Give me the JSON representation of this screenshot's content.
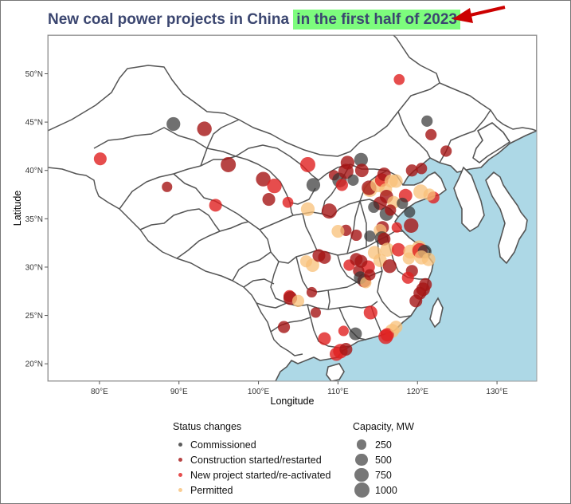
{
  "title": {
    "prefix": "New coal power projects in China",
    "highlight": "in the first half of 2023"
  },
  "colors": {
    "sea": "#add8e6",
    "land": "#ffffff",
    "border": "#555555",
    "title": "#3b4670",
    "highlight": "#7dfc7d",
    "arrow": "#cc0000",
    "commissioned": "#333333",
    "construction": "#a51515",
    "new_project": "#e02020",
    "permitted": "#f8c078"
  },
  "axes": {
    "xlabel": "Longitude",
    "ylabel": "Latitude",
    "xticks": [
      "80°E",
      "90°E",
      "100°E",
      "110°E",
      "120°E",
      "130°E"
    ],
    "xtick_values": [
      80,
      90,
      100,
      110,
      120,
      130
    ],
    "yticks": [
      "20°N",
      "25°N",
      "30°N",
      "35°N",
      "40°N",
      "45°N",
      "50°N"
    ],
    "ytick_values": [
      20,
      25,
      30,
      35,
      40,
      45,
      50
    ],
    "xlim": [
      73.5,
      135
    ],
    "ylim": [
      18.2,
      54
    ]
  },
  "legend": {
    "status_title": "Status changes",
    "status_items": [
      {
        "label": "Commissioned",
        "key": "commissioned"
      },
      {
        "label": "Construction started/restarted",
        "key": "construction"
      },
      {
        "label": "New project started/re-activated",
        "key": "new_project"
      },
      {
        "label": "Permitted",
        "key": "permitted"
      }
    ],
    "capacity_title": "Capacity, MW",
    "capacity_items": [
      {
        "label": "250",
        "value": 250
      },
      {
        "label": "500",
        "value": 500
      },
      {
        "label": "750",
        "value": 750
      },
      {
        "label": "1000",
        "value": 1000
      }
    ]
  },
  "projects": [
    {
      "lon": 89.3,
      "lat": 44.8,
      "status": "commissioned",
      "mw": 750
    },
    {
      "lon": 93.2,
      "lat": 44.3,
      "status": "construction",
      "mw": 900
    },
    {
      "lon": 80.1,
      "lat": 41.2,
      "status": "new_project",
      "mw": 600
    },
    {
      "lon": 88.5,
      "lat": 38.3,
      "status": "construction",
      "mw": 300
    },
    {
      "lon": 96.2,
      "lat": 40.6,
      "status": "construction",
      "mw": 1000
    },
    {
      "lon": 94.6,
      "lat": 36.4,
      "status": "new_project",
      "mw": 600
    },
    {
      "lon": 100.6,
      "lat": 39.1,
      "status": "construction",
      "mw": 900
    },
    {
      "lon": 102.0,
      "lat": 38.4,
      "status": "new_project",
      "mw": 900
    },
    {
      "lon": 101.3,
      "lat": 37.0,
      "status": "construction",
      "mw": 600
    },
    {
      "lon": 103.7,
      "lat": 36.7,
      "status": "new_project",
      "mw": 350
    },
    {
      "lon": 106.2,
      "lat": 40.6,
      "status": "new_project",
      "mw": 1000
    },
    {
      "lon": 106.9,
      "lat": 38.5,
      "status": "commissioned",
      "mw": 750
    },
    {
      "lon": 106.2,
      "lat": 36.0,
      "status": "permitted",
      "mw": 750
    },
    {
      "lon": 108.9,
      "lat": 35.8,
      "status": "construction",
      "mw": 1000
    },
    {
      "lon": 109.5,
      "lat": 39.5,
      "status": "construction",
      "mw": 300
    },
    {
      "lon": 110.2,
      "lat": 39.0,
      "status": "commissioned",
      "mw": 900
    },
    {
      "lon": 111.0,
      "lat": 39.9,
      "status": "construction",
      "mw": 1000
    },
    {
      "lon": 111.2,
      "lat": 40.8,
      "status": "construction",
      "mw": 750
    },
    {
      "lon": 112.9,
      "lat": 41.1,
      "status": "commissioned",
      "mw": 750
    },
    {
      "lon": 113.0,
      "lat": 40.0,
      "status": "construction",
      "mw": 700
    },
    {
      "lon": 111.9,
      "lat": 39.0,
      "status": "commissioned",
      "mw": 400
    },
    {
      "lon": 110.5,
      "lat": 38.5,
      "status": "new_project",
      "mw": 500
    },
    {
      "lon": 114.0,
      "lat": 38.0,
      "status": "permitted",
      "mw": 900
    },
    {
      "lon": 113.9,
      "lat": 38.2,
      "status": "construction",
      "mw": 900
    },
    {
      "lon": 115.0,
      "lat": 38.5,
      "status": "permitted",
      "mw": 900
    },
    {
      "lon": 115.5,
      "lat": 39.0,
      "status": "new_project",
      "mw": 700
    },
    {
      "lon": 115.8,
      "lat": 39.6,
      "status": "construction",
      "mw": 700
    },
    {
      "lon": 116.7,
      "lat": 38.9,
      "status": "permitted",
      "mw": 700
    },
    {
      "lon": 117.3,
      "lat": 38.9,
      "status": "permitted",
      "mw": 700
    },
    {
      "lon": 116.0,
      "lat": 38.0,
      "status": "permitted",
      "mw": 600
    },
    {
      "lon": 116.1,
      "lat": 37.3,
      "status": "construction",
      "mw": 700
    },
    {
      "lon": 118.5,
      "lat": 37.4,
      "status": "new_project",
      "mw": 700
    },
    {
      "lon": 119.3,
      "lat": 40.0,
      "status": "construction",
      "mw": 500
    },
    {
      "lon": 120.5,
      "lat": 40.2,
      "status": "construction",
      "mw": 400
    },
    {
      "lon": 120.4,
      "lat": 37.8,
      "status": "permitted",
      "mw": 900
    },
    {
      "lon": 122.0,
      "lat": 37.2,
      "status": "new_project",
      "mw": 500
    },
    {
      "lon": 121.5,
      "lat": 37.5,
      "status": "permitted",
      "mw": 500
    },
    {
      "lon": 121.2,
      "lat": 45.1,
      "status": "commissioned",
      "mw": 400
    },
    {
      "lon": 121.7,
      "lat": 43.7,
      "status": "construction",
      "mw": 400
    },
    {
      "lon": 123.6,
      "lat": 42.0,
      "status": "construction",
      "mw": 400
    },
    {
      "lon": 117.7,
      "lat": 49.4,
      "status": "new_project",
      "mw": 350
    },
    {
      "lon": 115.3,
      "lat": 36.6,
      "status": "construction",
      "mw": 700
    },
    {
      "lon": 114.5,
      "lat": 36.2,
      "status": "commissioned",
      "mw": 400
    },
    {
      "lon": 117.0,
      "lat": 36.7,
      "status": "permitted",
      "mw": 600
    },
    {
      "lon": 116.1,
      "lat": 35.5,
      "status": "commissioned",
      "mw": 750
    },
    {
      "lon": 116.6,
      "lat": 35.9,
      "status": "construction",
      "mw": 400
    },
    {
      "lon": 118.1,
      "lat": 36.6,
      "status": "commissioned",
      "mw": 400
    },
    {
      "lon": 119.0,
      "lat": 35.7,
      "status": "commissioned",
      "mw": 400
    },
    {
      "lon": 119.2,
      "lat": 34.3,
      "status": "construction",
      "mw": 900
    },
    {
      "lon": 115.6,
      "lat": 34.1,
      "status": "construction",
      "mw": 600
    },
    {
      "lon": 117.4,
      "lat": 34.1,
      "status": "new_project",
      "mw": 300
    },
    {
      "lon": 115.3,
      "lat": 33.8,
      "status": "permitted",
      "mw": 600
    },
    {
      "lon": 114.0,
      "lat": 33.2,
      "status": "commissioned",
      "mw": 400
    },
    {
      "lon": 115.5,
      "lat": 33.0,
      "status": "commissioned",
      "mw": 750
    },
    {
      "lon": 115.8,
      "lat": 32.9,
      "status": "construction",
      "mw": 600
    },
    {
      "lon": 116.2,
      "lat": 31.8,
      "status": "permitted",
      "mw": 800
    },
    {
      "lon": 114.6,
      "lat": 31.5,
      "status": "permitted",
      "mw": 700
    },
    {
      "lon": 115.3,
      "lat": 30.7,
      "status": "permitted",
      "mw": 700
    },
    {
      "lon": 116.5,
      "lat": 30.1,
      "status": "construction",
      "mw": 750
    },
    {
      "lon": 117.6,
      "lat": 31.8,
      "status": "new_project",
      "mw": 700
    },
    {
      "lon": 119.1,
      "lat": 31.6,
      "status": "permitted",
      "mw": 800
    },
    {
      "lon": 120.2,
      "lat": 32.0,
      "status": "permitted",
      "mw": 900
    },
    {
      "lon": 120.3,
      "lat": 31.7,
      "status": "new_project",
      "mw": 1000
    },
    {
      "lon": 120.9,
      "lat": 31.6,
      "status": "commissioned",
      "mw": 750
    },
    {
      "lon": 120.5,
      "lat": 31.0,
      "status": "permitted",
      "mw": 800
    },
    {
      "lon": 121.4,
      "lat": 30.8,
      "status": "permitted",
      "mw": 700
    },
    {
      "lon": 118.9,
      "lat": 30.9,
      "status": "permitted",
      "mw": 500
    },
    {
      "lon": 119.3,
      "lat": 29.6,
      "status": "construction",
      "mw": 500
    },
    {
      "lon": 113.8,
      "lat": 30.0,
      "status": "new_project",
      "mw": 700
    },
    {
      "lon": 112.6,
      "lat": 29.6,
      "status": "construction",
      "mw": 400
    },
    {
      "lon": 113.3,
      "lat": 28.6,
      "status": "construction",
      "mw": 750
    },
    {
      "lon": 112.8,
      "lat": 28.9,
      "status": "commissioned",
      "mw": 600
    },
    {
      "lon": 113.5,
      "lat": 28.4,
      "status": "permitted",
      "mw": 400
    },
    {
      "lon": 114.0,
      "lat": 29.2,
      "status": "construction",
      "mw": 400
    },
    {
      "lon": 111.4,
      "lat": 30.2,
      "status": "new_project",
      "mw": 400
    },
    {
      "lon": 112.3,
      "lat": 30.8,
      "status": "construction",
      "mw": 600
    },
    {
      "lon": 112.9,
      "lat": 30.6,
      "status": "construction",
      "mw": 600
    },
    {
      "lon": 111.0,
      "lat": 33.8,
      "status": "construction",
      "mw": 400
    },
    {
      "lon": 110.0,
      "lat": 33.7,
      "status": "permitted",
      "mw": 600
    },
    {
      "lon": 112.3,
      "lat": 33.3,
      "status": "construction",
      "mw": 400
    },
    {
      "lon": 108.3,
      "lat": 31.0,
      "status": "construction",
      "mw": 600
    },
    {
      "lon": 106.8,
      "lat": 30.2,
      "status": "permitted",
      "mw": 700
    },
    {
      "lon": 107.6,
      "lat": 31.2,
      "status": "construction",
      "mw": 600
    },
    {
      "lon": 106.0,
      "lat": 30.6,
      "status": "permitted",
      "mw": 500
    },
    {
      "lon": 103.9,
      "lat": 27.0,
      "status": "new_project",
      "mw": 500
    },
    {
      "lon": 104.0,
      "lat": 26.8,
      "status": "construction",
      "mw": 750
    },
    {
      "lon": 105.0,
      "lat": 26.5,
      "status": "permitted",
      "mw": 500
    },
    {
      "lon": 106.7,
      "lat": 27.4,
      "status": "construction",
      "mw": 300
    },
    {
      "lon": 107.2,
      "lat": 25.3,
      "status": "construction",
      "mw": 300
    },
    {
      "lon": 103.2,
      "lat": 23.8,
      "status": "construction",
      "mw": 500
    },
    {
      "lon": 108.3,
      "lat": 22.6,
      "status": "new_project",
      "mw": 600
    },
    {
      "lon": 110.3,
      "lat": 21.3,
      "status": "new_project",
      "mw": 900
    },
    {
      "lon": 109.8,
      "lat": 21.0,
      "status": "new_project",
      "mw": 700
    },
    {
      "lon": 111.0,
      "lat": 21.5,
      "status": "construction",
      "mw": 600
    },
    {
      "lon": 110.7,
      "lat": 23.4,
      "status": "new_project",
      "mw": 300
    },
    {
      "lon": 112.2,
      "lat": 23.1,
      "status": "commissioned",
      "mw": 600
    },
    {
      "lon": 114.1,
      "lat": 25.3,
      "status": "new_project",
      "mw": 750
    },
    {
      "lon": 116.8,
      "lat": 23.4,
      "status": "permitted",
      "mw": 800
    },
    {
      "lon": 116.2,
      "lat": 23.0,
      "status": "new_project",
      "mw": 700
    },
    {
      "lon": 116.0,
      "lat": 22.8,
      "status": "new_project",
      "mw": 900
    },
    {
      "lon": 117.3,
      "lat": 23.8,
      "status": "permitted",
      "mw": 600
    },
    {
      "lon": 119.8,
      "lat": 26.5,
      "status": "construction",
      "mw": 600
    },
    {
      "lon": 120.3,
      "lat": 27.3,
      "status": "construction",
      "mw": 600
    },
    {
      "lon": 120.7,
      "lat": 27.7,
      "status": "construction",
      "mw": 750
    },
    {
      "lon": 121.0,
      "lat": 28.2,
      "status": "construction",
      "mw": 600
    },
    {
      "lon": 118.8,
      "lat": 28.9,
      "status": "new_project",
      "mw": 500
    }
  ]
}
